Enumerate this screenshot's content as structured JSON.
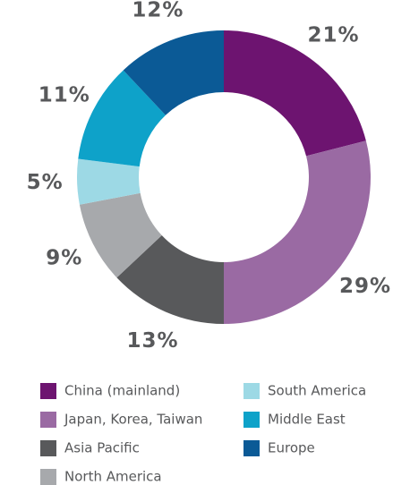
{
  "chart_data": {
    "type": "donut",
    "categories": [
      "China (mainland)",
      "Japan, Korea, Taiwan",
      "Asia Pacific",
      "North America",
      "South America",
      "Middle East",
      "Europe"
    ],
    "values": [
      21,
      29,
      13,
      9,
      5,
      11,
      12
    ],
    "value_labels": [
      "21%",
      "29%",
      "13%",
      "9%",
      "5%",
      "11%",
      "12%"
    ],
    "colors": [
      "#6d1470",
      "#9a6aa3",
      "#58595b",
      "#a7a9ac",
      "#9dd9e5",
      "#0ea2c9",
      "#0b5a96"
    ]
  }
}
